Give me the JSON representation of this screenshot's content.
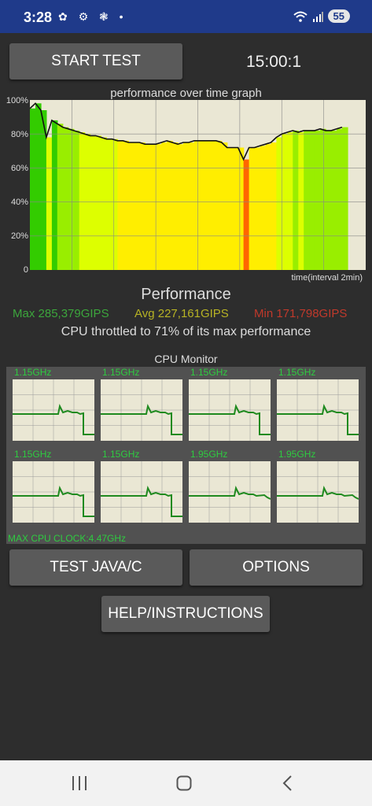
{
  "status_bar": {
    "time": "3:28",
    "left_icons": "✿ ⚙ ❃ •",
    "signal_icons": "📶",
    "battery": "55"
  },
  "controls": {
    "start_test_label": "START TEST",
    "timer": "15:00:1"
  },
  "graph": {
    "title": "performance over time graph",
    "y_labels": [
      "100%",
      "80%",
      "60%",
      "40%",
      "20%",
      "0"
    ],
    "x_caption": "time(interval 2min)"
  },
  "chart_data": {
    "type": "line",
    "title": "performance over time graph",
    "xlabel": "time(interval 2min)",
    "ylabel": "",
    "ylim": [
      0,
      100
    ],
    "series": [
      {
        "values": [
          95,
          98,
          94,
          78,
          88,
          86,
          84,
          83,
          82,
          81,
          80,
          79,
          79,
          78,
          77,
          77,
          76,
          76,
          75,
          75,
          75,
          74,
          74,
          74,
          75,
          76,
          75,
          74,
          75,
          75,
          76,
          76,
          76,
          76,
          76,
          75,
          72,
          72,
          72,
          65,
          72,
          72,
          73,
          74,
          75,
          78,
          80,
          81,
          82,
          81,
          82,
          82,
          82,
          83,
          82,
          82,
          83,
          84
        ]
      }
    ]
  },
  "performance": {
    "title": "Performance",
    "max": "Max 285,379GIPS",
    "avg": "Avg 227,161GIPS",
    "min": "Min 171,798GIPS",
    "throttle_text": "CPU throttled to 71% of its max performance"
  },
  "cpu_monitor": {
    "title": "CPU Monitor",
    "cores": [
      {
        "freq": "1.15GHz"
      },
      {
        "freq": "1.15GHz"
      },
      {
        "freq": "1.15GHz"
      },
      {
        "freq": "1.15GHz"
      },
      {
        "freq": "1.15GHz"
      },
      {
        "freq": "1.15GHz"
      },
      {
        "freq": "1.95GHz"
      },
      {
        "freq": "1.95GHz"
      }
    ],
    "max_clock": "MAX CPU CLOCK:4.47GHz"
  },
  "buttons": {
    "test_java_c": "TEST JAVA/C",
    "options": "OPTIONS",
    "help": "HELP/INSTRUCTIONS"
  },
  "colors": {
    "status_bar": "#1f3a8a",
    "max_color": "#3ca63c",
    "avg_color": "#b7b324",
    "min_color": "#c0392b"
  }
}
